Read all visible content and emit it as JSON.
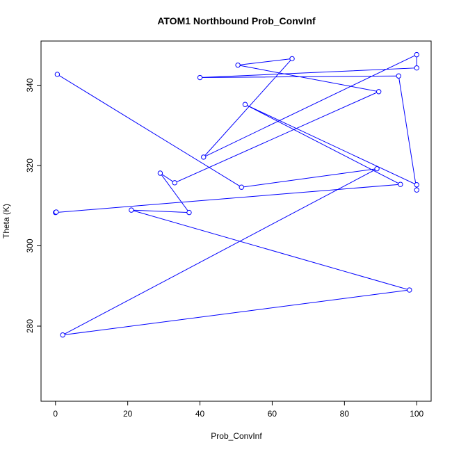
{
  "chart_data": {
    "type": "line",
    "title": "ATOM1 Northbound Prob_ConvInf",
    "xlabel": "Prob_ConvInf",
    "ylabel": "Theta (K)",
    "xlim": [
      -4,
      104
    ],
    "ylim": [
      261.3,
      351
    ],
    "x_ticks": [
      "0",
      "20",
      "40",
      "60",
      "80",
      "100"
    ],
    "y_ticks": [
      "280",
      "300",
      "320",
      "340"
    ],
    "grid": false,
    "legend": "none",
    "colors": {
      "series": "#0000ff",
      "axis": "#000000",
      "background": "#ffffff"
    },
    "series": [
      {
        "marker": "open-circle",
        "x": [
          0.5,
          51.5,
          89,
          2,
          98,
          21,
          37,
          29,
          33,
          89.5,
          50.5,
          65.5,
          41,
          100,
          100,
          40,
          95,
          100,
          100,
          52.5,
          95.5,
          0,
          0.2
        ],
        "y": [
          342.7,
          314.6,
          319.2,
          277.8,
          289.0,
          308.9,
          308.3,
          318.1,
          315.7,
          338.4,
          345.0,
          346.6,
          322.1,
          347.6,
          344.3,
          341.9,
          342.3,
          313.9,
          315.2,
          335.2,
          315.3,
          308.3,
          308.4
        ]
      }
    ]
  }
}
